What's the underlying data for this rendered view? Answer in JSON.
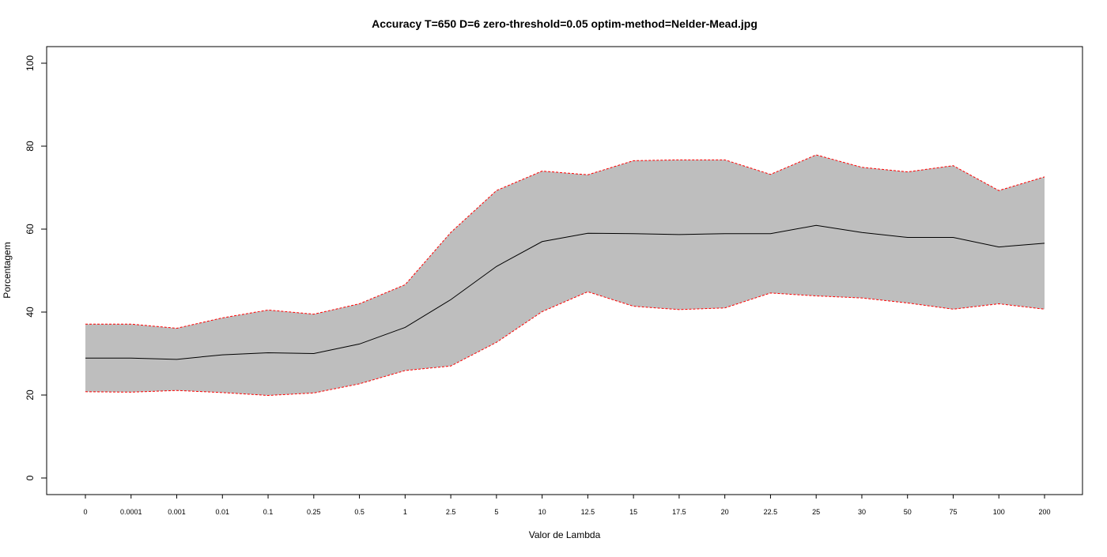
{
  "chart_data": {
    "type": "area",
    "title": "Accuracy T=650 D=6 zero-threshold=0.05 optim-method=Nelder-Mead.jpg",
    "xlabel": "Valor de Lambda",
    "ylabel": "Porcentagem",
    "ylim": [
      0,
      100
    ],
    "yticks": [
      "0",
      "20",
      "40",
      "60",
      "80",
      "100"
    ],
    "categories": [
      "0",
      "0.0001",
      "0.001",
      "0.01",
      "0.1",
      "0.25",
      "0.5",
      "1",
      "2.5",
      "5",
      "10",
      "12.5",
      "15",
      "17.5",
      "20",
      "22.5",
      "25",
      "30",
      "50",
      "75",
      "100",
      "200"
    ],
    "series": [
      {
        "role": "mean",
        "values": [
          28.9,
          28.9,
          28.6,
          29.7,
          30.2,
          30.0,
          32.3,
          36.3,
          43.0,
          51.0,
          57.0,
          59.0,
          58.9,
          58.7,
          58.9,
          58.9,
          60.9,
          59.2,
          58.0,
          58.0,
          55.7,
          56.6
        ]
      },
      {
        "role": "upper",
        "values": [
          37.1,
          37.1,
          36.1,
          38.6,
          40.5,
          39.5,
          42.0,
          46.6,
          59.2,
          69.3,
          74.0,
          73.1,
          76.5,
          76.7,
          76.7,
          73.2,
          77.9,
          74.9,
          73.8,
          75.3,
          69.3,
          72.6
        ]
      },
      {
        "role": "lower",
        "values": [
          20.8,
          20.7,
          21.1,
          20.6,
          19.9,
          20.5,
          22.7,
          25.9,
          27.0,
          32.7,
          40.1,
          44.9,
          41.4,
          40.6,
          41.0,
          44.6,
          43.9,
          43.4,
          42.2,
          40.7,
          42.0,
          40.7
        ]
      }
    ],
    "band_fill": "#bebebe",
    "band_edge_color": "#ff0000",
    "mean_line_color": "#000000",
    "grid": false,
    "legend": "none"
  }
}
